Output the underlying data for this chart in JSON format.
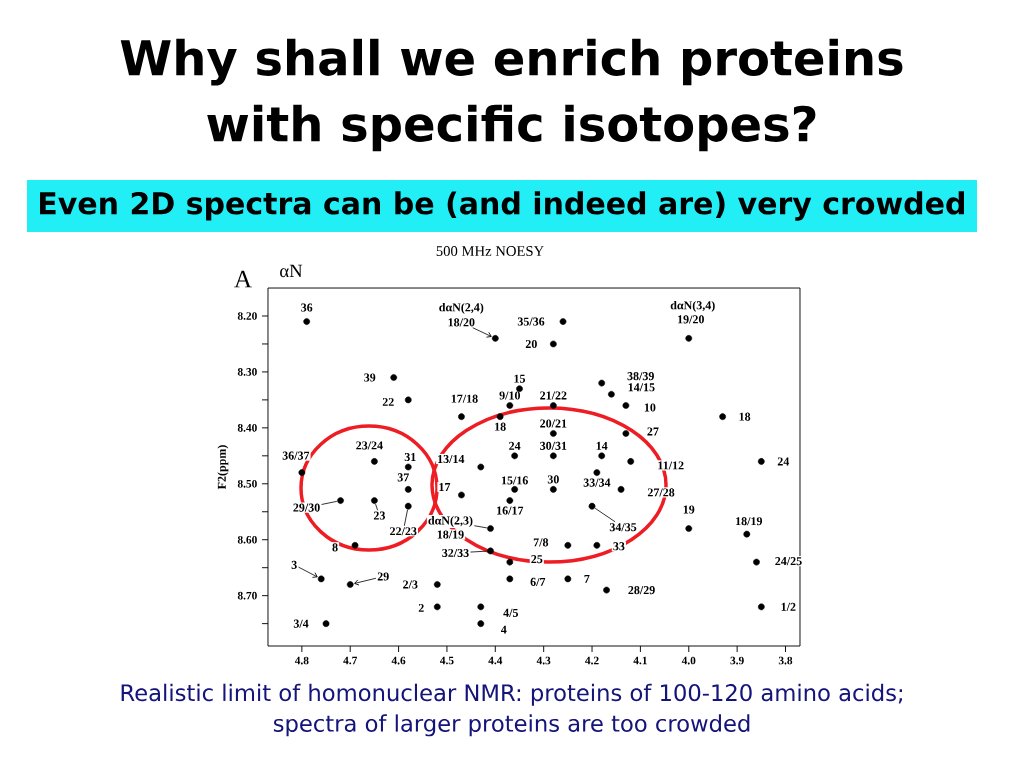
{
  "chart_data": {
    "type": "scatter",
    "title": "Why shall we enrich proteins with specific isotopes?",
    "subtitle": "Even 2D spectra can be (and indeed are) very crowded",
    "ylabel": "F2(ppm)",
    "xlim": [
      4.87,
      3.77
    ],
    "ylim": [
      8.79,
      8.15
    ],
    "xticks": [
      4.8,
      4.7,
      4.6,
      4.5,
      4.4,
      4.3,
      4.2,
      4.1,
      {
        "value": 4.0,
        "label": "4.0"
      },
      3.9,
      3.8
    ],
    "yticks": [
      {
        "value": 8.2,
        "label": "8.20"
      },
      {
        "value": 8.25,
        "label": null
      },
      {
        "value": 8.3,
        "label": "8.30"
      },
      {
        "value": 8.35,
        "label": null
      },
      {
        "value": 8.4,
        "label": "8.40"
      },
      {
        "value": 8.45,
        "label": null
      },
      {
        "value": 8.5,
        "label": "8.50"
      },
      {
        "value": 8.55,
        "label": null
      },
      {
        "value": 8.6,
        "label": "8.60"
      },
      {
        "value": 8.65,
        "label": null
      },
      {
        "value": 8.7,
        "label": "8.70"
      },
      {
        "value": 8.75,
        "label": null
      }
    ],
    "marker": "circle",
    "series": [
      {
        "color": "#000000",
        "x": [
          4.79,
          4.4,
          4.26,
          4.28,
          4.0,
          4.61,
          4.58,
          4.47,
          4.35,
          4.37,
          4.28,
          4.39,
          4.18,
          4.16,
          4.13,
          4.13,
          3.93,
          3.85,
          4.8,
          4.65,
          4.58,
          4.58,
          4.72,
          4.65,
          4.58,
          4.43,
          4.47,
          4.36,
          4.28,
          4.18,
          4.12,
          4.19,
          4.14,
          4.36,
          4.37,
          4.28,
          4.2,
          4.0,
          3.88,
          4.41,
          4.41,
          4.69,
          4.25,
          4.19,
          4.37,
          4.37,
          4.25,
          4.17,
          3.86,
          3.85,
          4.76,
          4.7,
          4.52,
          4.52,
          4.75,
          4.43,
          4.43,
          4.28
        ],
        "values": [
          8.21,
          8.24,
          8.21,
          8.25,
          8.24,
          8.31,
          8.35,
          8.38,
          8.33,
          8.36,
          8.36,
          8.38,
          8.32,
          8.34,
          8.36,
          8.41,
          8.38,
          8.46,
          8.48,
          8.46,
          8.47,
          8.51,
          8.53,
          8.53,
          8.54,
          8.47,
          8.52,
          8.45,
          8.45,
          8.45,
          8.46,
          8.48,
          8.51,
          8.51,
          8.53,
          8.51,
          8.54,
          8.58,
          8.59,
          8.58,
          8.62,
          8.61,
          8.61,
          8.61,
          8.64,
          8.67,
          8.67,
          8.69,
          8.64,
          8.72,
          8.67,
          8.68,
          8.68,
          8.72,
          8.75,
          8.72,
          8.75,
          8.41
        ]
      }
    ],
    "annotations": [
      "500 MHz NOESY",
      "A",
      "αN",
      {
        "text": "36",
        "x": 4.79,
        "y": 8.21
      },
      {
        "text": "dαN(2,4)",
        "x": 4.4,
        "y": 8.24
      },
      {
        "text": "18/20",
        "x": 4.4,
        "y": 8.24
      },
      {
        "text": "35/36",
        "x": 4.26,
        "y": 8.21
      },
      {
        "text": "20",
        "x": 4.28,
        "y": 8.25
      },
      {
        "text": "dαN(3,4)",
        "x": 4.0,
        "y": 8.24
      },
      {
        "text": "19/20",
        "x": 4.0,
        "y": 8.24
      },
      {
        "text": "39",
        "x": 4.61,
        "y": 8.31
      },
      {
        "text": "22",
        "x": 4.58,
        "y": 8.35
      },
      {
        "text": "17/18",
        "x": 4.47,
        "y": 8.38
      },
      {
        "text": "15",
        "x": 4.35,
        "y": 8.33
      },
      {
        "text": "9/10",
        "x": 4.37,
        "y": 8.36
      },
      {
        "text": "21/22",
        "x": 4.28,
        "y": 8.36
      },
      {
        "text": "18",
        "x": 4.39,
        "y": 8.38
      },
      {
        "text": "38/39",
        "x": 4.18,
        "y": 8.32
      },
      {
        "text": "14/15",
        "x": 4.16,
        "y": 8.34
      },
      {
        "text": "10",
        "x": 4.13,
        "y": 8.36
      },
      {
        "text": "27",
        "x": 4.13,
        "y": 8.41
      },
      {
        "text": "18",
        "x": 3.93,
        "y": 8.38
      },
      {
        "text": "24",
        "x": 3.85,
        "y": 8.46
      },
      {
        "text": "36/37",
        "x": 4.8,
        "y": 8.48
      },
      {
        "text": "23/24",
        "x": 4.65,
        "y": 8.46
      },
      {
        "text": "31",
        "x": 4.58,
        "y": 8.47
      },
      {
        "text": "37",
        "x": 4.58,
        "y": 8.51
      },
      {
        "text": "29/30",
        "x": 4.72,
        "y": 8.53
      },
      {
        "text": "23",
        "x": 4.65,
        "y": 8.53
      },
      {
        "text": "22/23",
        "x": 4.58,
        "y": 8.54
      },
      {
        "text": "13/14",
        "x": 4.43,
        "y": 8.47
      },
      {
        "text": "17",
        "x": 4.47,
        "y": 8.52
      },
      {
        "text": "24",
        "x": 4.36,
        "y": 8.45
      },
      {
        "text": "30/31",
        "x": 4.28,
        "y": 8.45
      },
      {
        "text": "14",
        "x": 4.18,
        "y": 8.45
      },
      {
        "text": "11/12",
        "x": 4.12,
        "y": 8.46
      },
      {
        "text": "33/34",
        "x": 4.19,
        "y": 8.48
      },
      {
        "text": "27/28",
        "x": 4.14,
        "y": 8.51
      },
      {
        "text": "15/16",
        "x": 4.36,
        "y": 8.51
      },
      {
        "text": "16/17",
        "x": 4.37,
        "y": 8.53
      },
      {
        "text": "30",
        "x": 4.28,
        "y": 8.51
      },
      {
        "text": "34/35",
        "x": 4.2,
        "y": 8.54
      },
      {
        "text": "19",
        "x": 4.0,
        "y": 8.58
      },
      {
        "text": "18/19",
        "x": 3.88,
        "y": 8.59
      },
      {
        "text": "dαN(2,3)",
        "x": 4.41,
        "y": 8.58
      },
      {
        "text": "18/19",
        "x": 4.41,
        "y": 8.58
      },
      {
        "text": "32/33",
        "x": 4.41,
        "y": 8.62
      },
      {
        "text": "8",
        "x": 4.69,
        "y": 8.61
      },
      {
        "text": "7/8",
        "x": 4.25,
        "y": 8.61
      },
      {
        "text": "33",
        "x": 4.19,
        "y": 8.61
      },
      {
        "text": "25",
        "x": 4.37,
        "y": 8.64
      },
      {
        "text": "6/7",
        "x": 4.37,
        "y": 8.67
      },
      {
        "text": "7",
        "x": 4.25,
        "y": 8.67
      },
      {
        "text": "28/29",
        "x": 4.17,
        "y": 8.69
      },
      {
        "text": "24/25",
        "x": 3.86,
        "y": 8.64
      },
      {
        "text": "1/2",
        "x": 3.85,
        "y": 8.72
      },
      {
        "text": "3",
        "x": 4.76,
        "y": 8.67
      },
      {
        "text": "29",
        "x": 4.7,
        "y": 8.68
      },
      {
        "text": "2/3",
        "x": 4.52,
        "y": 8.68
      },
      {
        "text": "2",
        "x": 4.52,
        "y": 8.72
      },
      {
        "text": "3/4",
        "x": 4.75,
        "y": 8.75
      },
      {
        "text": "4/5",
        "x": 4.43,
        "y": 8.72
      },
      {
        "text": "4",
        "x": 4.43,
        "y": 8.75
      },
      {
        "text": "20/21",
        "x": 4.28,
        "y": 8.41
      },
      "Realistic limit of homonuclear NMR: proteins of 100-120 amino acids; spectra of larger proteins are too crowded"
    ]
  }
}
